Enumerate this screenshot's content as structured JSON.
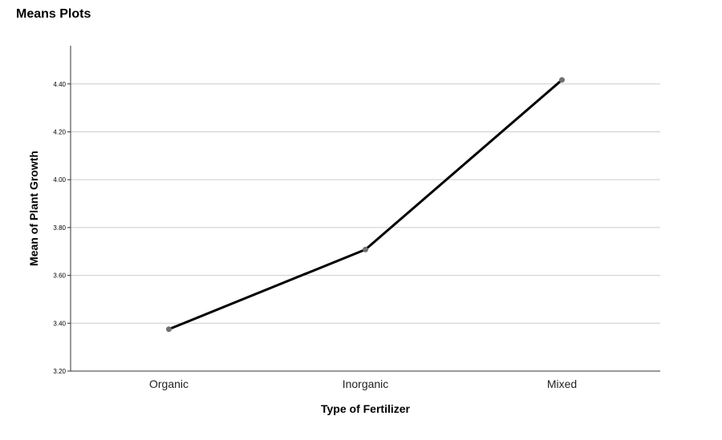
{
  "page": {
    "title": "Means Plots"
  },
  "chart_data": {
    "type": "line",
    "title": "",
    "xlabel": "Type of Fertilizer",
    "ylabel": "Mean of Plant Growth",
    "categories": [
      "Organic",
      "Inorganic",
      "Mixed"
    ],
    "series": [
      {
        "values": [
          3.375,
          3.708,
          4.417
        ]
      }
    ],
    "ylim": [
      3.2,
      4.56
    ],
    "yticks": [
      3.2,
      3.4,
      3.6,
      3.8,
      4.0,
      4.2,
      4.4
    ],
    "ytick_labels": [
      "3.20",
      "3.40",
      "3.60",
      "3.80",
      "4.00",
      "4.20",
      "4.40"
    ],
    "grid": true,
    "colors": {
      "line": "#000000",
      "marker": "#707070",
      "grid": "#cccccc",
      "axis": "#333333"
    }
  }
}
